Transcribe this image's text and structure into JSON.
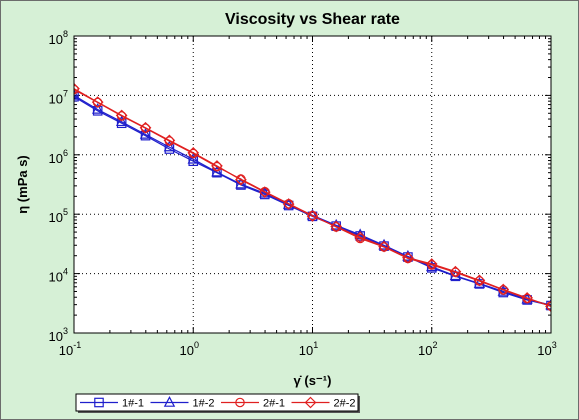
{
  "chart_data": {
    "type": "line",
    "title": "Viscosity vs Shear rate",
    "xlabel": "γ̇ (s⁻¹)",
    "ylabel": "η (mPa s)",
    "xscale": "log",
    "yscale": "log",
    "xlim": [
      0.1,
      1000
    ],
    "ylim": [
      1000,
      100000000
    ],
    "x_ticks": [
      {
        "base": "10",
        "exp": "-1"
      },
      {
        "base": "10",
        "exp": "0"
      },
      {
        "base": "10",
        "exp": "1"
      },
      {
        "base": "10",
        "exp": "2"
      },
      {
        "base": "10",
        "exp": "3"
      }
    ],
    "y_ticks": [
      {
        "base": "10",
        "exp": "3"
      },
      {
        "base": "10",
        "exp": "4"
      },
      {
        "base": "10",
        "exp": "5"
      },
      {
        "base": "10",
        "exp": "6"
      },
      {
        "base": "10",
        "exp": "7"
      },
      {
        "base": "10",
        "exp": "8"
      }
    ],
    "grid": true,
    "legend_position": "bottom",
    "x": [
      0.1,
      0.158,
      0.251,
      0.398,
      0.631,
      1,
      1.58,
      2.51,
      3.98,
      6.31,
      10,
      15.8,
      25.1,
      39.8,
      63.1,
      100,
      158,
      251,
      398,
      631,
      1000
    ],
    "series": [
      {
        "name": "1#-1",
        "marker": "square",
        "color": "#1f1fcc",
        "values": [
          9500000,
          5500000,
          3400000,
          2100000,
          1250000,
          780000,
          500000,
          310000,
          215000,
          140000,
          92000,
          63000,
          43000,
          29000,
          19000,
          12500,
          9000,
          6700,
          4800,
          3600,
          2900
        ]
      },
      {
        "name": "1#-2",
        "marker": "triangle",
        "color": "#1f1fcc",
        "values": [
          10000000,
          5800000,
          3600000,
          2200000,
          1350000,
          840000,
          510000,
          320000,
          225000,
          145000,
          96000,
          65000,
          45000,
          30000,
          19500,
          13000,
          9200,
          6800,
          5000,
          3700,
          2950
        ]
      },
      {
        "name": "2#-1",
        "marker": "circle",
        "color": "#e02020",
        "values": [
          12500000,
          7600000,
          4500000,
          2800000,
          1700000,
          1050000,
          630000,
          390000,
          240000,
          150000,
          95000,
          61000,
          39000,
          28000,
          18000,
          14000,
          10500,
          7500,
          5300,
          3800,
          2850
        ]
      },
      {
        "name": "2#-2",
        "marker": "diamond",
        "color": "#e02020",
        "values": [
          13000000,
          7700000,
          4600000,
          2850000,
          1750000,
          1080000,
          650000,
          380000,
          235000,
          148000,
          93000,
          62000,
          41000,
          28500,
          18500,
          14500,
          10800,
          7700,
          5400,
          3900,
          2800
        ]
      }
    ]
  }
}
